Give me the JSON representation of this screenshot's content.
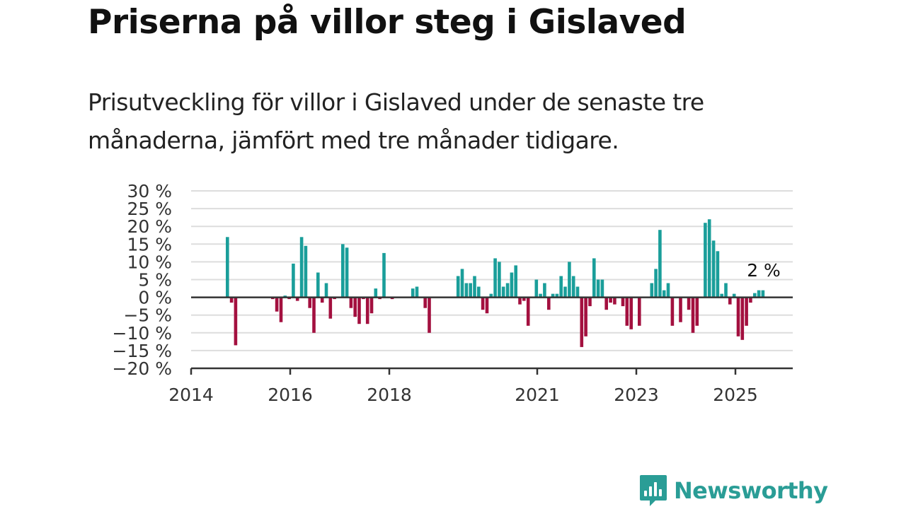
{
  "title": "Priserna på villor steg i Gislaved",
  "subtitle": "Prisutveckling för villor i Gislaved under de senaste tre månaderna, jämfört med tre månader tidigare.",
  "brand": {
    "name": "Newsworthy",
    "icon": "newsworthy-logo-icon"
  },
  "colors": {
    "positive": "#1a9e9a",
    "negative": "#a3103f",
    "grid": "#dddddd",
    "axis": "#333333"
  },
  "chart_data": {
    "type": "bar",
    "ylim": [
      -20,
      30
    ],
    "yticks": [
      "30 %",
      "25 %",
      "20 %",
      "15 %",
      "10 %",
      "5 %",
      "0 %",
      "−5 %",
      "−10 %",
      "−15 %",
      "−20 %"
    ],
    "xticks": [
      "2014",
      "2016",
      "2018",
      "2021",
      "2023",
      "2025"
    ],
    "end_label": "2 %",
    "grid": true,
    "values": [
      17,
      -1.5,
      -13.5,
      null,
      null,
      null,
      null,
      null,
      null,
      null,
      null,
      -0.5,
      -4,
      -7,
      0.5,
      -0.5,
      9.5,
      -1,
      17,
      14.5,
      -3,
      -10,
      7,
      -1.5,
      4,
      -6,
      -0.5,
      null,
      15,
      14,
      -3,
      -5.5,
      -7.5,
      -0.5,
      -7.5,
      -4.5,
      2.5,
      -0.5,
      12.5,
      null,
      -0.5,
      null,
      null,
      null,
      null,
      2.5,
      3,
      null,
      -3,
      -10,
      null,
      null,
      null,
      null,
      null,
      null,
      6,
      8,
      4,
      4,
      6,
      3,
      -3.5,
      -4.5,
      1,
      11,
      10,
      3,
      4,
      7,
      9,
      -2,
      -1,
      -8,
      null,
      5,
      1,
      4,
      -3.5,
      1,
      1,
      6,
      3,
      10,
      6,
      3,
      -14,
      -11,
      -2.5,
      11,
      5,
      5,
      -3.5,
      -1.5,
      -2,
      null,
      -2.5,
      -8,
      -9,
      null,
      -8,
      null,
      null,
      4,
      8,
      19,
      2,
      4,
      -8,
      null,
      -7,
      null,
      -3.5,
      -10,
      -8,
      null,
      21,
      22,
      16,
      13,
      1,
      4,
      -2,
      1,
      -11,
      -12,
      -8,
      -1.5,
      1.2,
      2,
      2
    ]
  }
}
